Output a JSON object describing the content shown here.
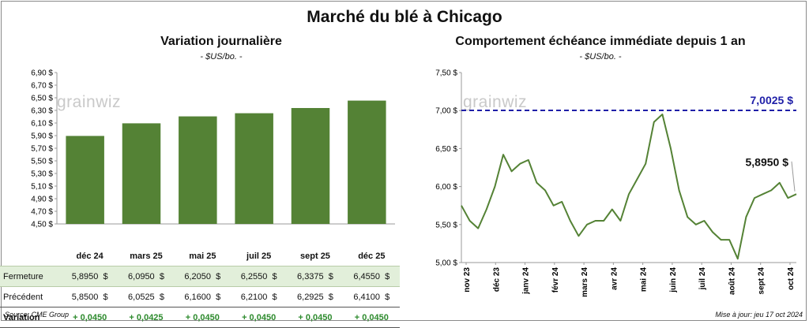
{
  "main_title": "Marché du blé à Chicago",
  "left": {
    "title": "Variation  journalière",
    "subtitle": "- $US/bo. -",
    "watermark": "grainwiz",
    "table": {
      "headers": [
        "déc 24",
        "mars 25",
        "mai 25",
        "juil 25",
        "sept 25",
        "déc 25"
      ],
      "rows": [
        {
          "label": "Fermeture",
          "values": [
            "5,8950",
            "6,0950",
            "6,2050",
            "6,2550",
            "6,3375",
            "6,4550"
          ],
          "unit": "$"
        },
        {
          "label": "Précédent",
          "values": [
            "5,8500",
            "6,0525",
            "6,1600",
            "6,2100",
            "6,2925",
            "6,4100"
          ],
          "unit": "$"
        },
        {
          "label": "Variation",
          "values": [
            "+ 0,0450",
            "+ 0,0425",
            "+ 0,0450",
            "+ 0,0450",
            "+ 0,0450",
            "+ 0,0450"
          ]
        }
      ]
    }
  },
  "right": {
    "title": "Comportement  échéance immédiate depuis 1 an",
    "subtitle": "- $US/bo. -",
    "watermark": "grainwiz",
    "max_label": "7,0025 $",
    "last_label": "5,8950 $"
  },
  "footer": {
    "source": "Source: CME Group",
    "updated": "Mise à jour: jeu 17 oct 2024"
  },
  "chart_data": [
    {
      "type": "bar",
      "title": "Variation  journalière",
      "subtitle": "- $US/bo. -",
      "categories": [
        "déc 24",
        "mars 25",
        "mai 25",
        "juil 25",
        "sept 25",
        "déc 25"
      ],
      "values": [
        5.895,
        6.095,
        6.205,
        6.255,
        6.3375,
        6.455
      ],
      "ylim": [
        4.5,
        6.9
      ],
      "yticks": [
        "4,50 $",
        "4,70 $",
        "4,90 $",
        "5,10 $",
        "5,30 $",
        "5,50 $",
        "5,70 $",
        "5,90 $",
        "6,10 $",
        "6,30 $",
        "6,50 $",
        "6,70 $",
        "6,90 $"
      ],
      "color": "#548235",
      "grid": false
    },
    {
      "type": "line",
      "title": "Comportement  échéance immédiate depuis 1 an",
      "subtitle": "- $US/bo. -",
      "ylim": [
        5.0,
        7.5
      ],
      "yticks": [
        "5,00 $",
        "5,50 $",
        "6,00 $",
        "6,50 $",
        "7,00 $",
        "7,50 $"
      ],
      "xticks": [
        "nov 23",
        "déc 23",
        "janv 24",
        "févr 24",
        "mars 24",
        "avr 24",
        "mai 24",
        "juin 24",
        "juil 24",
        "août 24",
        "sept 24",
        "oct 24"
      ],
      "x": [
        0,
        0.3,
        0.6,
        0.9,
        1.2,
        1.5,
        1.8,
        2.1,
        2.4,
        2.7,
        3,
        3.3,
        3.6,
        3.9,
        4.2,
        4.5,
        4.8,
        5.1,
        5.4,
        5.7,
        6,
        6.3,
        6.6,
        6.9,
        7.2,
        7.5,
        7.8,
        8.1,
        8.4,
        8.7,
        9,
        9.3,
        9.6,
        9.9,
        10.2,
        10.5,
        10.8,
        11.1,
        11.4,
        11.7,
        12
      ],
      "values": [
        5.75,
        5.55,
        5.45,
        5.7,
        6.0,
        6.42,
        6.2,
        6.3,
        6.35,
        6.05,
        5.95,
        5.75,
        5.8,
        5.55,
        5.35,
        5.5,
        5.55,
        5.55,
        5.7,
        5.55,
        5.9,
        6.1,
        6.3,
        6.85,
        6.95,
        6.5,
        5.95,
        5.6,
        5.5,
        5.55,
        5.4,
        5.3,
        5.3,
        5.05,
        5.6,
        5.85,
        5.9,
        5.95,
        6.05,
        5.85,
        5.9
      ],
      "series": [
        {
          "name": "",
          "color": "#548235"
        }
      ],
      "reference_line": {
        "value": 7.0025,
        "color": "#1f1fa8",
        "style": "dashed"
      },
      "last_value": 5.895,
      "grid": false
    }
  ]
}
